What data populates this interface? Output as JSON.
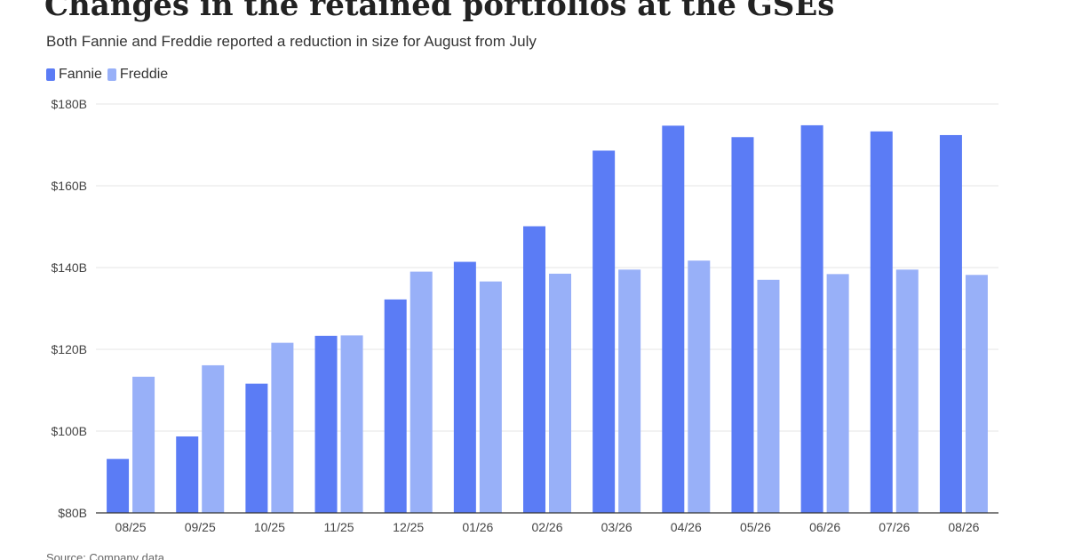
{
  "title": "Changes in the retained portfolios at the GSEs",
  "subtitle": "Both Fannie and Freddie reported a reduction in size for August from July",
  "source": "Source: Company data",
  "colors": {
    "fannie": "#5b7cf5",
    "freddie": "#98b0f8",
    "grid": "#e6e6e6",
    "axis": "#333333"
  },
  "chart_data": {
    "type": "bar",
    "categories": [
      "08/25",
      "09/25",
      "10/25",
      "11/25",
      "12/25",
      "01/26",
      "02/26",
      "03/26",
      "04/26",
      "05/26",
      "06/26",
      "07/26",
      "08/26"
    ],
    "series": [
      {
        "name": "Fannie",
        "values": [
          93.2,
          98.7,
          111.6,
          123.3,
          132.2,
          141.4,
          150.1,
          168.6,
          174.7,
          171.9,
          174.8,
          173.3,
          172.4
        ]
      },
      {
        "name": "Freddie",
        "values": [
          113.3,
          116.1,
          121.6,
          123.4,
          139.0,
          136.6,
          138.5,
          139.5,
          141.7,
          137.0,
          138.4,
          139.5,
          138.2
        ]
      }
    ],
    "ylim": [
      80,
      180
    ],
    "yticks": [
      80,
      100,
      120,
      140,
      160,
      180
    ],
    "ytick_labels": [
      "$80B",
      "$100B",
      "$120B",
      "$140B",
      "$160B",
      "$180B"
    ],
    "grid": true,
    "legend_position": "top-left"
  }
}
